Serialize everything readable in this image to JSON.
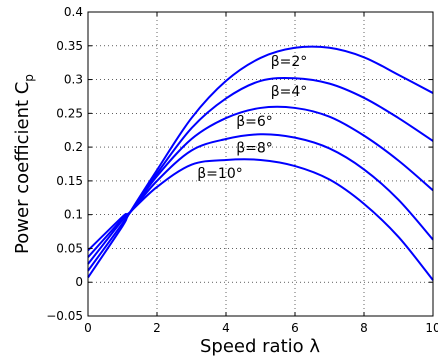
{
  "chart_data": {
    "type": "line",
    "title": "",
    "xlabel": "Speed ratio λ",
    "ylabel": "Power coefficient C",
    "ylabel_subscript": "p",
    "xlim": [
      0,
      10
    ],
    "ylim": [
      -0.05,
      0.4
    ],
    "xticks": [
      "0",
      "2",
      "4",
      "6",
      "8",
      "10"
    ],
    "yticks": [
      "−0.05",
      "0",
      "0.05",
      "0.1",
      "0.15",
      "0.2",
      "0.25",
      "0.3",
      "0.35",
      "0.4"
    ],
    "grid": true,
    "line_color": "#0000ff",
    "series": [
      {
        "name": "β=2°",
        "x": [
          0,
          1,
          1.2,
          2,
          3,
          4,
          5,
          6,
          7,
          8,
          9,
          10
        ],
        "y": [
          0.007,
          0.083,
          0.102,
          0.166,
          0.243,
          0.298,
          0.332,
          0.347,
          0.347,
          0.333,
          0.307,
          0.28
        ]
      },
      {
        "name": "β=4°",
        "x": [
          0,
          1,
          1.2,
          2,
          3,
          4,
          5,
          6,
          7,
          8,
          9,
          10
        ],
        "y": [
          0.017,
          0.087,
          0.102,
          0.161,
          0.228,
          0.272,
          0.298,
          0.302,
          0.294,
          0.273,
          0.243,
          0.209
        ]
      },
      {
        "name": "β=6°",
        "x": [
          0,
          1,
          1.2,
          2,
          3,
          4,
          5,
          6,
          7,
          8,
          9,
          10
        ],
        "y": [
          0.027,
          0.092,
          0.102,
          0.157,
          0.212,
          0.243,
          0.258,
          0.258,
          0.245,
          0.217,
          0.18,
          0.136
        ]
      },
      {
        "name": "β=8°",
        "x": [
          0,
          1,
          1.2,
          2,
          3,
          4,
          5,
          6,
          7,
          8,
          9,
          10
        ],
        "y": [
          0.037,
          0.094,
          0.102,
          0.15,
          0.195,
          0.212,
          0.219,
          0.214,
          0.198,
          0.167,
          0.122,
          0.063
        ]
      },
      {
        "name": "β=10°",
        "x": [
          0,
          1,
          1.2,
          2,
          3,
          4,
          5,
          6,
          7,
          8,
          9,
          10
        ],
        "y": [
          0.047,
          0.097,
          0.103,
          0.141,
          0.174,
          0.181,
          0.181,
          0.172,
          0.152,
          0.116,
          0.067,
          0.003
        ]
      }
    ]
  }
}
